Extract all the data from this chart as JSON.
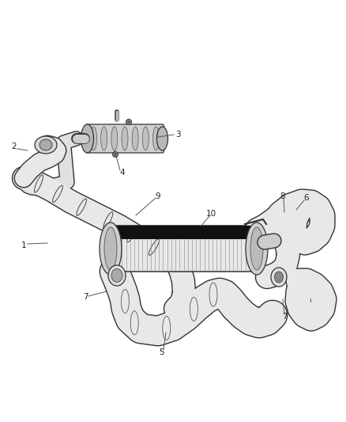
{
  "background_color": "#ffffff",
  "figsize": [
    4.38,
    5.33
  ],
  "dpi": 100,
  "edge_color": "#333333",
  "fill_color": "#ffffff",
  "light_fill": "#f0f0f0",
  "dark_fill": "#111111",
  "medium_fill": "#cccccc",
  "font_size": 7.5,
  "text_color": "#222222",
  "label_line_color": "#555555"
}
